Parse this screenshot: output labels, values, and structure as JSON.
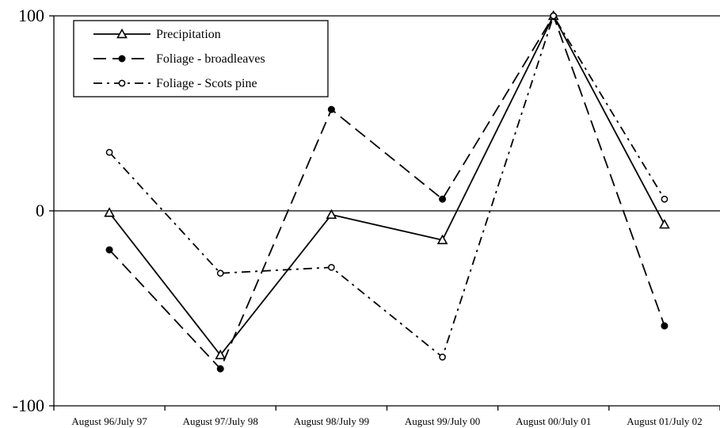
{
  "chart_data": {
    "type": "line",
    "categories": [
      "August 96/July 97",
      "August 97/July 98",
      "August 98/July 99",
      "August 99/July 00",
      "August 00/July 01",
      "August 01/July 02"
    ],
    "ylim": [
      -100,
      100
    ],
    "yticks": [
      -100,
      0,
      100
    ],
    "ytick_labels": [
      "-100",
      "0",
      "100"
    ],
    "grid": false,
    "legend_position": "top-left",
    "series": [
      {
        "name": "Precipitation",
        "values": [
          -1,
          -74,
          -2,
          -15,
          100,
          -7
        ],
        "line": "solid",
        "marker": "open-triangle",
        "color": "#000000"
      },
      {
        "name": "Foliage - broadleaves",
        "values": [
          -20,
          -81,
          52,
          6,
          100,
          -59
        ],
        "line": "dashed",
        "marker": "filled-circle",
        "color": "#000000"
      },
      {
        "name": "Foliage - Scots pine",
        "values": [
          30,
          -32,
          -29,
          -75,
          100,
          6
        ],
        "line": "dash-dot",
        "marker": "open-circle",
        "color": "#000000"
      }
    ]
  }
}
